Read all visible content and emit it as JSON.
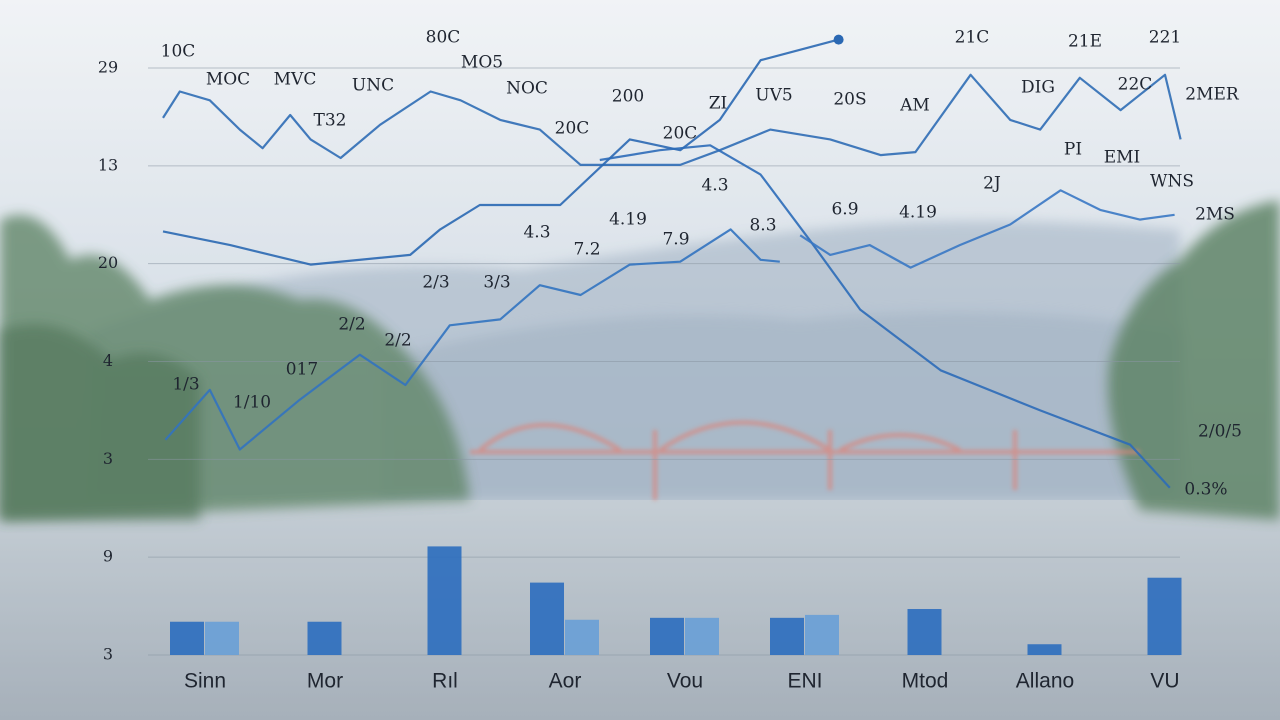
{
  "chart_data": [
    {
      "type": "line",
      "xlim": [
        -1,
        9
      ],
      "ylim": [
        0,
        6
      ],
      "yticks": [
        {
          "value": 6,
          "label": "29"
        },
        {
          "value": 5,
          "label": "13"
        },
        {
          "value": 4,
          "label": "20"
        },
        {
          "value": 3,
          "label": "4"
        },
        {
          "value": 2,
          "label": "3"
        },
        {
          "value": 1,
          "label": "9"
        },
        {
          "value": 0,
          "label": "3"
        }
      ],
      "grid": true,
      "series": [
        {
          "color": "#2f6db5",
          "x": [
            -0.35,
            -0.21,
            0.04,
            0.29,
            0.48,
            0.71,
            0.88,
            1.13,
            1.46,
            1.88,
            2.13,
            2.46,
            2.79,
            3.13,
            3.54,
            3.96,
            4.29,
            4.71,
            5.21,
            5.63,
            5.92,
            6.38,
            6.71,
            6.96,
            7.29,
            7.63,
            8.0,
            8.13
          ],
          "values": [
            5.49,
            5.76,
            5.67,
            5.37,
            5.18,
            5.52,
            5.27,
            5.08,
            5.42,
            5.76,
            5.67,
            5.47,
            5.37,
            5.01,
            5.01,
            5.01,
            5.16,
            5.37,
            5.27,
            5.11,
            5.14,
            5.93,
            5.47,
            5.37,
            5.9,
            5.57,
            5.93,
            5.27
          ]
        },
        {
          "color": "#2a68b3",
          "x": [
            -0.35,
            0.21,
            0.88,
            1.71,
            1.96,
            2.29,
            2.96,
            3.54,
            3.96,
            4.29,
            4.63,
            5.28
          ],
          "values": [
            4.33,
            4.19,
            3.99,
            4.09,
            4.35,
            4.6,
            4.6,
            5.27,
            5.16,
            5.47,
            6.08,
            6.29
          ]
        },
        {
          "color": "#2c6cb8",
          "x": [
            3.29,
            3.79,
            4.21,
            4.63,
            5.04,
            5.46,
            6.13,
            6.96,
            7.71,
            8.04
          ],
          "values": [
            5.06,
            5.16,
            5.21,
            4.91,
            4.24,
            3.53,
            2.91,
            2.5,
            2.15,
            1.71
          ]
        },
        {
          "color": "#3273c0",
          "x": [
            -0.33,
            0.04,
            0.29,
            0.79,
            1.29,
            1.67,
            2.04,
            2.46,
            2.79,
            3.13,
            3.54,
            3.96,
            4.38,
            4.63,
            4.79
          ],
          "values": [
            2.2,
            2.71,
            2.1,
            2.61,
            3.07,
            2.76,
            3.37,
            3.43,
            3.78,
            3.68,
            3.99,
            4.02,
            4.35,
            4.04,
            4.02
          ]
        },
        {
          "color": "#3a78c4",
          "x": [
            4.96,
            5.21,
            5.54,
            5.88,
            6.29,
            6.71,
            7.13,
            7.46,
            7.79,
            8.08
          ],
          "values": [
            4.29,
            4.09,
            4.19,
            3.96,
            4.19,
            4.4,
            4.75,
            4.55,
            4.45,
            4.5
          ]
        }
      ],
      "annotations": [
        "10C",
        "80C",
        "MOC",
        "MVC",
        "UNC",
        "MO5",
        "NOC",
        "T32",
        "200",
        "20C",
        "ZI",
        "UV5",
        "20S",
        "AM",
        "20C",
        "21C",
        "21E",
        "221",
        "DIG",
        "22C",
        "2MER",
        "PI",
        "EMI",
        "WNS",
        "2J",
        "4.3",
        "6.9",
        "4.19",
        "4.3",
        "4.19",
        "7.2",
        "7.9",
        "8.3",
        "2/3",
        "3/3",
        "2MS",
        "2/2",
        "2/2",
        "017",
        "1/3",
        "1/10",
        "2/0/5",
        "0.3%"
      ]
    },
    {
      "type": "bar",
      "categories": [
        "Sinn",
        "Mor",
        "Rıl",
        "Aor",
        "Vou",
        "ENI",
        "Mtod",
        "Allano",
        "VU"
      ],
      "ylim": [
        0,
        6
      ],
      "series": [
        {
          "color": "#2f6fbe",
          "values": [
            0.34,
            0.34,
            1.11,
            0.74,
            0.38,
            0.38,
            0.47,
            0.11,
            0.79
          ]
        },
        {
          "color": "#6a9fd6",
          "values": [
            0.34,
            null,
            null,
            0.36,
            0.38,
            0.41,
            null,
            null,
            null
          ]
        }
      ]
    }
  ]
}
